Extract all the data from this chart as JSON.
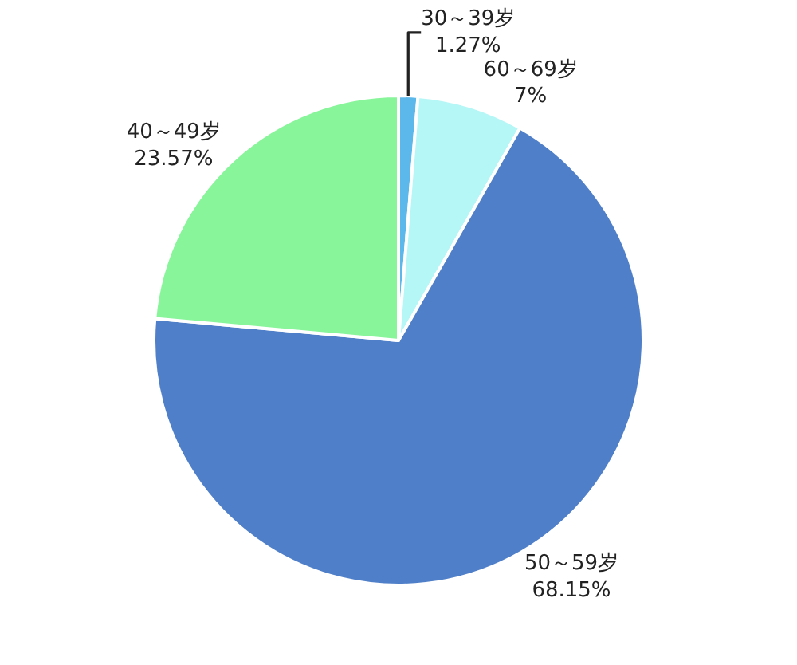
{
  "chart_data": {
    "type": "pie",
    "categories": [
      "30～39岁",
      "60～69岁",
      "50～59岁",
      "40～49岁"
    ],
    "values": [
      1.27,
      7,
      68.15,
      23.57
    ],
    "value_labels": [
      "1.27%",
      "7%",
      "68.15%",
      "23.57%"
    ],
    "colors": [
      "#5cb8ea",
      "#b5f6f6",
      "#4f7fc8",
      "#89f59b"
    ],
    "legend": false
  }
}
